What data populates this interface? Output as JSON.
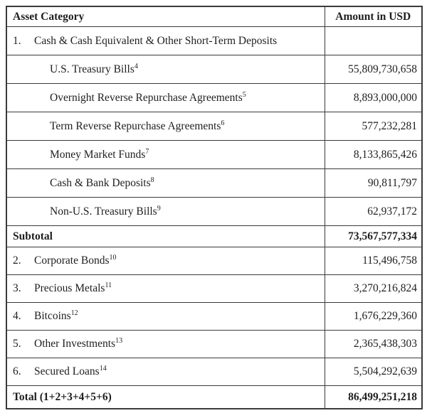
{
  "table": {
    "columns": [
      {
        "label": "Asset Category"
      },
      {
        "label": "Amount in USD"
      }
    ],
    "rows": [
      {
        "type": "section",
        "num": "1.",
        "label": "Cash & Cash Equivalent & Other Short-Term Deposits",
        "amount": ""
      },
      {
        "type": "sub",
        "label": "U.S. Treasury Bills",
        "footnote": "4",
        "amount": "55,809,730,658"
      },
      {
        "type": "sub",
        "label": "Overnight Reverse Repurchase Agreements",
        "footnote": "5",
        "amount": "8,893,000,000"
      },
      {
        "type": "sub",
        "label": "Term Reverse Repurchase Agreements",
        "footnote": "6",
        "amount": "577,232,281"
      },
      {
        "type": "sub",
        "label": "Money Market Funds",
        "footnote": "7",
        "amount": "8,133,865,426"
      },
      {
        "type": "sub",
        "label": "Cash & Bank Deposits",
        "footnote": "8",
        "amount": "90,811,797"
      },
      {
        "type": "sub",
        "label": "Non-U.S. Treasury Bills",
        "footnote": "9",
        "amount": "62,937,172"
      },
      {
        "type": "subtotal",
        "label": "Subtotal",
        "amount": "73,567,577,334"
      },
      {
        "type": "item",
        "num": "2.",
        "label": "Corporate Bonds",
        "footnote": "10",
        "amount": "115,496,758"
      },
      {
        "type": "item",
        "num": "3.",
        "label": "Precious Metals",
        "footnote": "11",
        "amount": "3,270,216,824"
      },
      {
        "type": "item",
        "num": "4.",
        "label": "Bitcoins",
        "footnote": "12",
        "amount": "1,676,229,360"
      },
      {
        "type": "item",
        "num": "5.",
        "label": "Other Investments",
        "footnote": "13",
        "amount": "2,365,438,303"
      },
      {
        "type": "item",
        "num": "6.",
        "label": "Secured Loans",
        "footnote": "14",
        "amount": "5,504,292,639"
      },
      {
        "type": "total",
        "label": "Total (1+2+3+4+5+6)",
        "amount": "86,499,251,218"
      }
    ],
    "colors": {
      "background": "#ffffff",
      "border": "#3a3a3a",
      "text": "#1e1e1e"
    }
  }
}
